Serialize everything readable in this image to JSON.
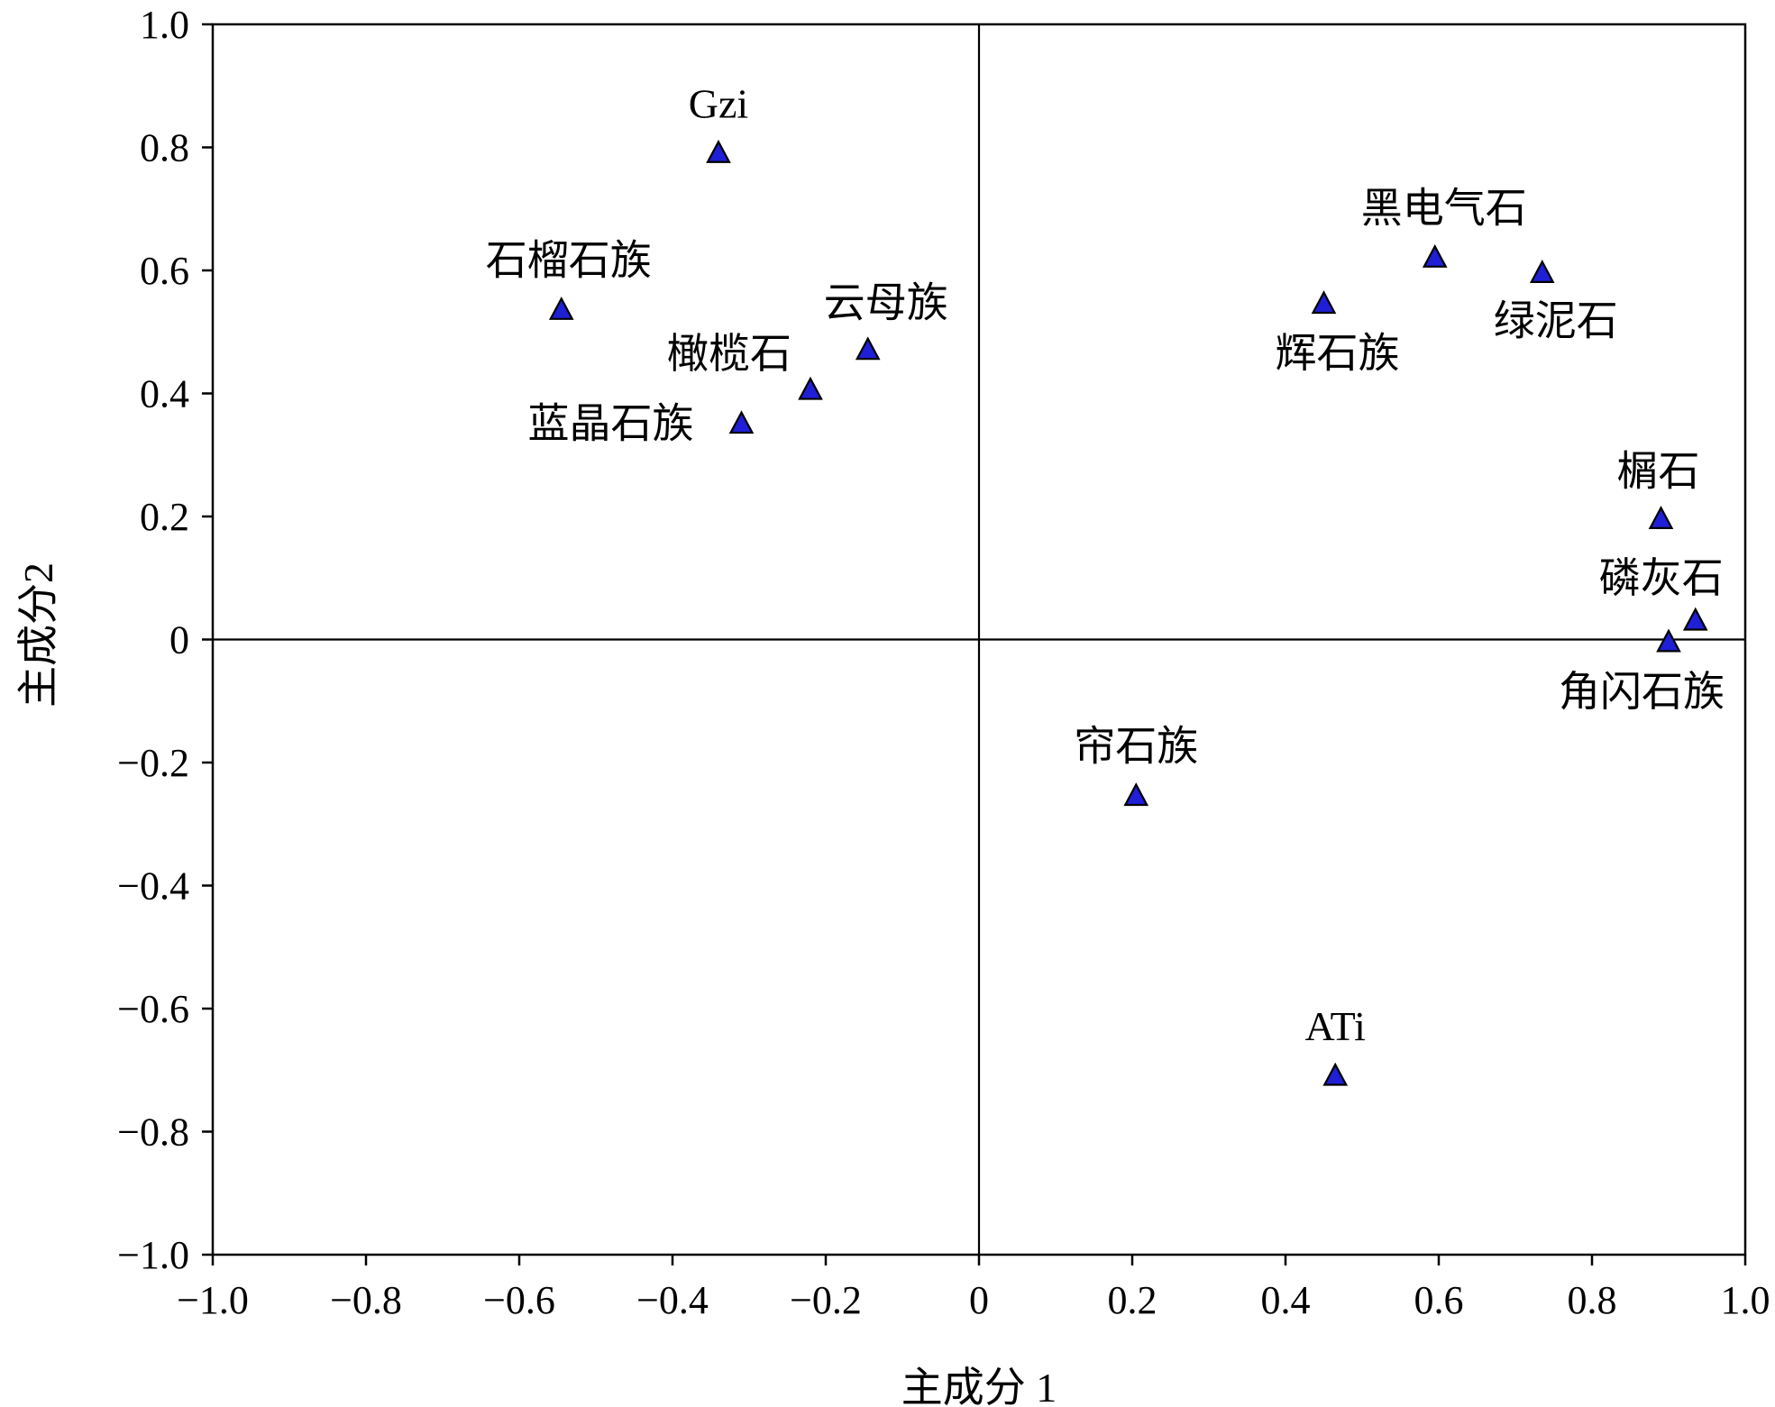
{
  "chart_data": {
    "type": "scatter",
    "title": "",
    "xlabel": "主成分 1",
    "ylabel": "主成分2",
    "xlim": [
      -1.0,
      1.0
    ],
    "ylim": [
      -1.0,
      1.0
    ],
    "xticks": [
      -1.0,
      -0.8,
      -0.6,
      -0.4,
      -0.2,
      0,
      0.2,
      0.4,
      0.6,
      0.8,
      1.0
    ],
    "xtick_labels": [
      "−1.0",
      "−0.8",
      "−0.6",
      "−0.4",
      "−0.2",
      "0",
      "0.2",
      "0.4",
      "0.6",
      "0.8",
      "1.0"
    ],
    "yticks": [
      1.0,
      0.8,
      0.6,
      0.4,
      0.2,
      0,
      -0.2,
      -0.4,
      -0.6,
      -0.8,
      -1.0
    ],
    "ytick_labels": [
      "1.0",
      "0.8",
      "0.6",
      "0.4",
      "0.2",
      "0",
      "−0.2",
      "−0.4",
      "−0.6",
      "−0.8",
      "−1.0"
    ],
    "grid": false,
    "reference_lines": {
      "x": 0,
      "y": 0
    },
    "marker": "triangle",
    "marker_color": "#1f1fd6",
    "points": [
      {
        "label": "Gzi",
        "x": -0.34,
        "y": 0.79,
        "label_pos": "above"
      },
      {
        "label": "石榴石族",
        "x": -0.545,
        "y": 0.535,
        "label_pos": "above"
      },
      {
        "label": "云母族",
        "x": -0.145,
        "y": 0.47,
        "label_pos": "above-right"
      },
      {
        "label": "橄榄石",
        "x": -0.22,
        "y": 0.405,
        "label_pos": "above-left"
      },
      {
        "label": "蓝晶石族",
        "x": -0.31,
        "y": 0.35,
        "label_pos": "left"
      },
      {
        "label": "黑电气石",
        "x": 0.595,
        "y": 0.62,
        "label_pos": "above"
      },
      {
        "label": "辉石族",
        "x": 0.45,
        "y": 0.545,
        "label_pos": "below"
      },
      {
        "label": "绿泥石",
        "x": 0.735,
        "y": 0.595,
        "label_pos": "below"
      },
      {
        "label": "榍石",
        "x": 0.89,
        "y": 0.195,
        "label_pos": "above"
      },
      {
        "label": "磷灰石",
        "x": 0.935,
        "y": 0.03,
        "label_pos": "above-left"
      },
      {
        "label": "角闪石族",
        "x": 0.9,
        "y": -0.005,
        "label_pos": "below"
      },
      {
        "label": "帘石族",
        "x": 0.205,
        "y": -0.255,
        "label_pos": "above"
      },
      {
        "label": "ATi",
        "x": 0.465,
        "y": -0.71,
        "label_pos": "above"
      }
    ]
  }
}
